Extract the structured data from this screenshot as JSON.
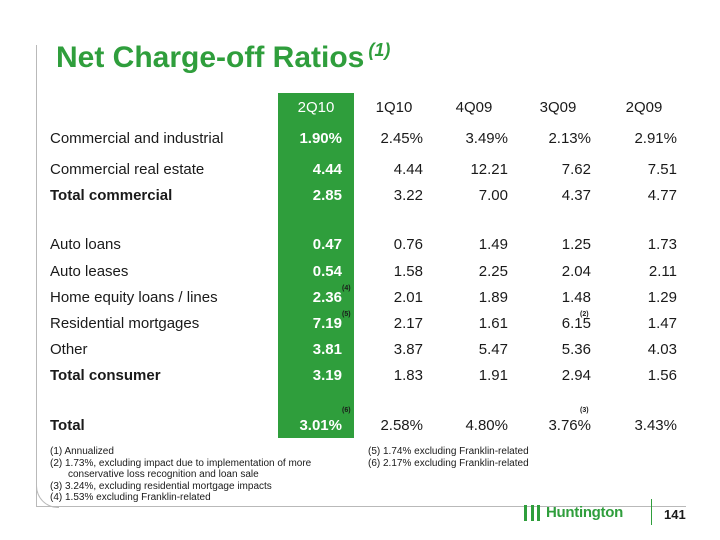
{
  "title": {
    "text": "Net Charge-off Ratios",
    "footnote_ref": "(1)"
  },
  "columns": [
    "2Q10",
    "1Q10",
    "4Q09",
    "3Q09",
    "2Q09"
  ],
  "rows": [
    {
      "label": "Commercial and industrial",
      "bold": false,
      "values": [
        "1.90%",
        "2.45%",
        "3.49%",
        "2.13%",
        "2.91%"
      ]
    },
    {
      "label": "Commercial real estate",
      "bold": false,
      "values": [
        "4.44",
        "4.44",
        "12.21",
        "7.62",
        "7.51"
      ]
    },
    {
      "label": "Total commercial",
      "bold": true,
      "values": [
        "2.85",
        "3.22",
        "7.00",
        "4.37",
        "4.77"
      ]
    },
    {
      "label": "Auto loans",
      "bold": false,
      "values": [
        "0.47",
        "0.76",
        "1.49",
        "1.25",
        "1.73"
      ]
    },
    {
      "label": "Auto leases",
      "bold": false,
      "values": [
        "0.54",
        "1.58",
        "2.25",
        "2.04",
        "2.11"
      ]
    },
    {
      "label": "Home equity loans / lines",
      "bold": false,
      "values": [
        "2.36",
        "2.01",
        "1.89",
        "1.48",
        "1.29"
      ],
      "marks": {
        "c0": "(4)"
      }
    },
    {
      "label": "Residential mortgages",
      "bold": false,
      "values": [
        "7.19",
        "2.17",
        "1.61",
        "6.15",
        "1.47"
      ],
      "marks": {
        "c0": "(5)",
        "c3": "(2)"
      }
    },
    {
      "label": "Other",
      "bold": false,
      "values": [
        "3.81",
        "3.87",
        "5.47",
        "5.36",
        "4.03"
      ]
    },
    {
      "label": "Total consumer",
      "bold": true,
      "values": [
        "3.19",
        "1.83",
        "1.91",
        "2.94",
        "1.56"
      ]
    },
    {
      "label": "Total",
      "bold": true,
      "values": [
        "3.01%",
        "2.58%",
        "4.80%",
        "3.76%",
        "3.43%"
      ],
      "marks": {
        "c0": "(6)",
        "c3": "(3)"
      }
    }
  ],
  "footnotes_left": [
    "(1) Annualized",
    "(2) 1.73%, excluding impact due to implementation of more",
    "conservative loss recognition and loan sale",
    "(3) 3.24%, excluding residential mortgage impacts",
    "(4) 1.53% excluding Franklin-related"
  ],
  "footnotes_right": [
    "(5) 1.74% excluding Franklin-related",
    "(6) 2.17% excluding Franklin-related"
  ],
  "brand": {
    "name": "Huntington",
    "icon": "huntington-logo-icon",
    "color": "#2f9e3c"
  },
  "page_number": "141"
}
